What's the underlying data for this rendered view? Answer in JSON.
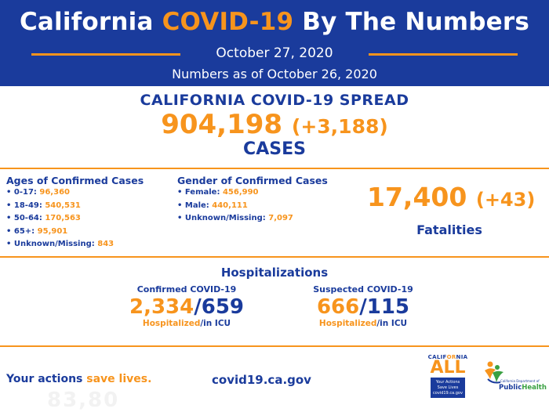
{
  "header": {
    "title_prefix": "California ",
    "title_accent": "COVID-19",
    "title_suffix": " By The Numbers",
    "date": "October 27, 2020",
    "as_of": "Numbers as of October 26, 2020"
  },
  "spread": {
    "title": "CALIFORNIA COVID-19 SPREAD",
    "cases": "904,198",
    "cases_delta": "(+3,188)",
    "cases_label": "CASES"
  },
  "ages": {
    "title": "Ages of Confirmed Cases",
    "items": [
      {
        "label": "• 0-17: ",
        "value": "96,360"
      },
      {
        "label": "• 18-49: ",
        "value": "540,531"
      },
      {
        "label": "• 50-64: ",
        "value": "170,563"
      },
      {
        "label": "• 65+: ",
        "value": "95,901"
      },
      {
        "label": "• Unknown/Missing: ",
        "value": "843"
      }
    ]
  },
  "gender": {
    "title": "Gender of Confirmed Cases",
    "items": [
      {
        "label": "• Female: ",
        "value": "456,990"
      },
      {
        "label": "• Male: ",
        "value": "440,111"
      },
      {
        "label": "• Unknown/Missing: ",
        "value": "7,097"
      }
    ]
  },
  "fatalities": {
    "count": "17,400",
    "delta": "(+43)",
    "label": "Fatalities"
  },
  "hospitalizations": {
    "title": "Hospitalizations",
    "confirmed": {
      "subtitle": "Confirmed COVID-19",
      "hospitalized": "2,334",
      "slash": "/",
      "icu": "659",
      "cap_hosp": "Hospitalized",
      "cap_icu": "/in ICU"
    },
    "suspected": {
      "subtitle": "Suspected COVID-19",
      "hospitalized": "666",
      "slash": "/",
      "icu": "115",
      "cap_hosp": "Hospitalized",
      "cap_icu": "/in ICU"
    }
  },
  "footer": {
    "tagline_prefix": "Your actions ",
    "tagline_accent": "save lives.",
    "url": "covid19.ca.gov",
    "ghost_text": "83,80"
  },
  "logos": {
    "ca_all": {
      "ca_prefix": "CALIF",
      "ca_accent": "OR",
      "ca_suffix": "NIA",
      "all": "ALL",
      "box_line1": "Your Actions",
      "box_line2": "Save Lives",
      "box_line3": "covid19.ca.gov"
    },
    "cdph": {
      "small": "California Department of",
      "name_prefix": "Public",
      "name_accent": "Health"
    }
  },
  "colors": {
    "navy": "#1a3b9c",
    "orange": "#f7941d",
    "green": "#3aa142"
  }
}
